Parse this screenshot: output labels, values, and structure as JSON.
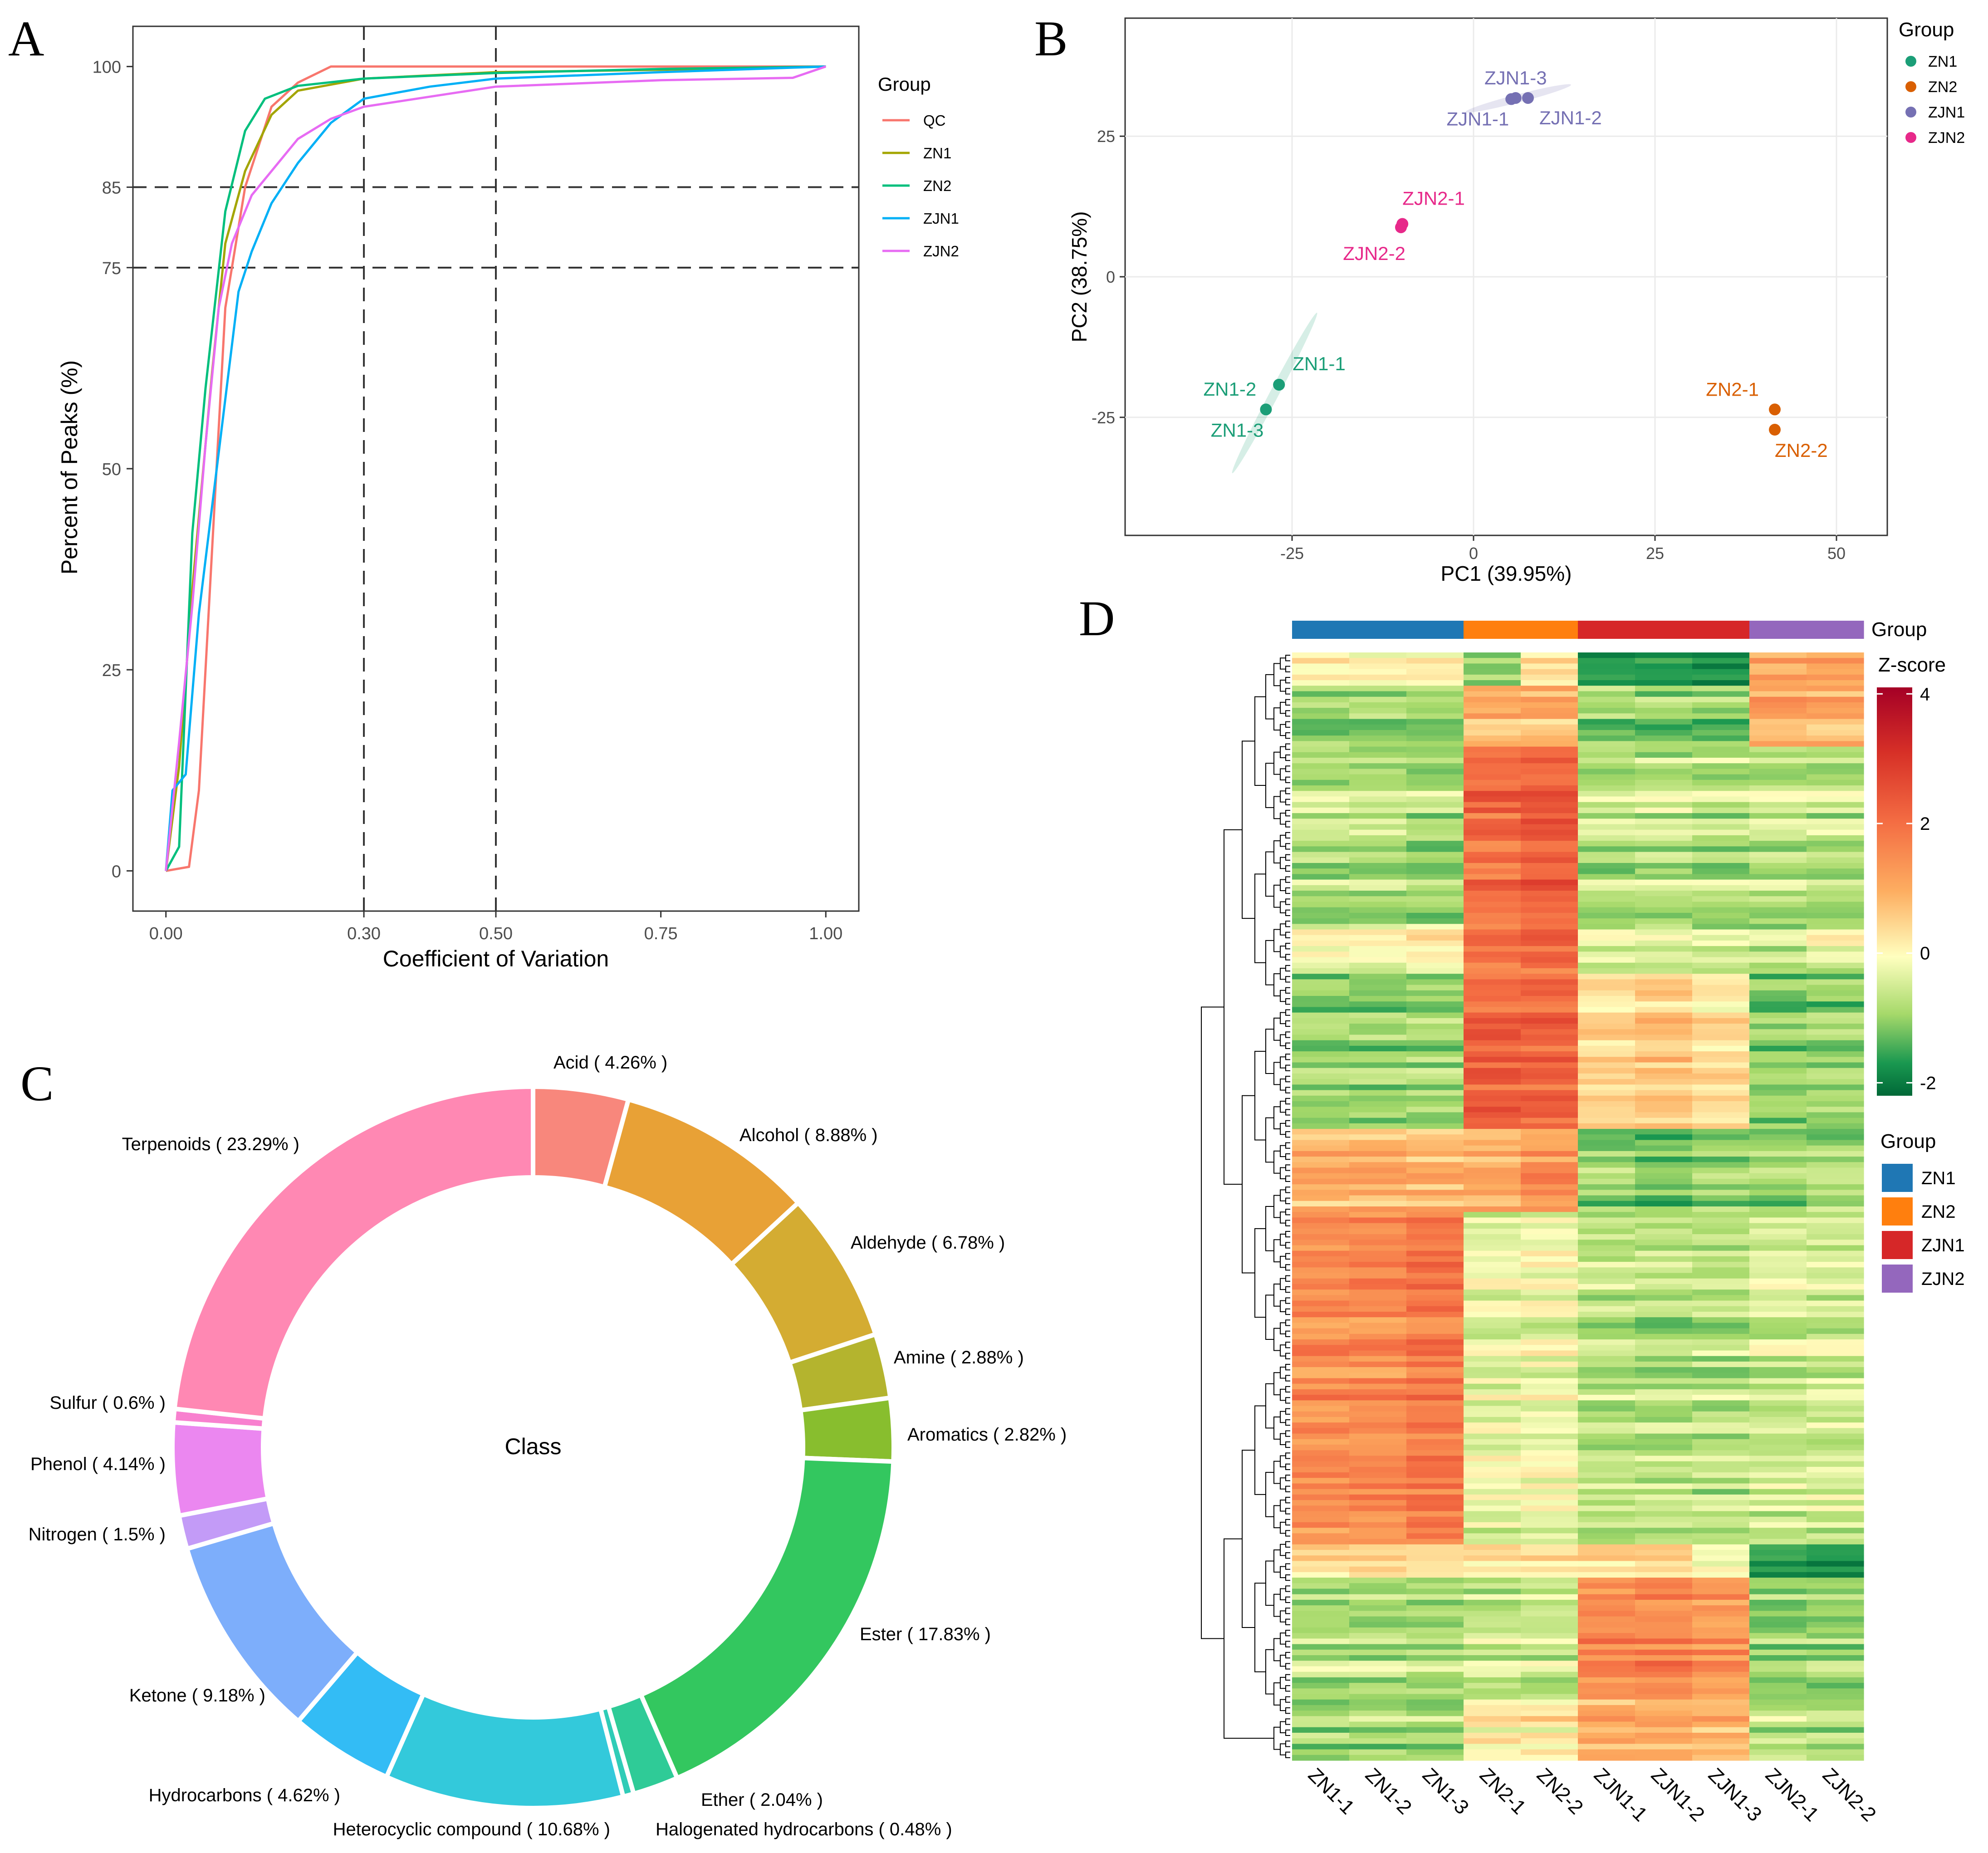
{
  "panels": {
    "a": "A",
    "b": "B",
    "c": "C",
    "d": "D"
  },
  "palette": {
    "QC": "#F8766D",
    "ZN1": "#A3A500",
    "ZN2": "#00BF7D",
    "ZJN1": "#00B0F6",
    "ZJN2": "#E76BF3",
    "pcaZN1": "#1B9E77",
    "pcaZN2": "#D95F02",
    "pcaZJN1": "#7570B3",
    "pcaZJN2": "#E7298A",
    "hmZN1": "#1F77B4",
    "hmZN2": "#FF7F0E",
    "hmZJN1": "#D62728",
    "hmZJN2": "#9467BD"
  },
  "chart_data": [
    {
      "id": "cv_cumulative",
      "type": "line",
      "xlabel": "Coefficient of Variation",
      "ylabel": "Percent of Peaks (%)",
      "xlim": [
        -0.05,
        1.05
      ],
      "ylim": [
        -5,
        105
      ],
      "xticks": [
        "0.00",
        "0.30",
        "0.50",
        "0.75",
        "1.00"
      ],
      "xtick_values": [
        0,
        0.3,
        0.5,
        0.75,
        1.0
      ],
      "yticks": [
        "0",
        "25",
        "50",
        "75",
        "85",
        "100"
      ],
      "ytick_values": [
        0,
        25,
        50,
        75,
        85,
        100
      ],
      "hlines": [
        75,
        85
      ],
      "vlines": [
        0.3,
        0.5
      ],
      "legend_title": "Group",
      "series": [
        {
          "name": "QC",
          "x": [
            0,
            0.035,
            0.05,
            0.07,
            0.09,
            0.12,
            0.16,
            0.2,
            0.25,
            0.3,
            0.5,
            0.75,
            1.0
          ],
          "y": [
            0,
            0.5,
            10,
            40,
            70,
            85,
            95,
            98,
            100,
            100,
            100,
            100,
            100
          ]
        },
        {
          "name": "ZN1",
          "x": [
            0,
            0.02,
            0.04,
            0.07,
            0.09,
            0.12,
            0.16,
            0.2,
            0.3,
            0.5,
            0.75,
            1.0
          ],
          "y": [
            0,
            13,
            35,
            62,
            78,
            87,
            94,
            97,
            98.5,
            99.3,
            99.6,
            100
          ]
        },
        {
          "name": "ZN2",
          "x": [
            0,
            0.02,
            0.04,
            0.06,
            0.09,
            0.12,
            0.15,
            0.2,
            0.3,
            0.5,
            0.75,
            1.0
          ],
          "y": [
            0,
            3,
            42,
            60,
            82,
            92,
            96,
            97.6,
            98.5,
            99.2,
            99.7,
            100
          ]
        },
        {
          "name": "ZJN1",
          "x": [
            0,
            0.01,
            0.03,
            0.05,
            0.08,
            0.11,
            0.13,
            0.16,
            0.2,
            0.25,
            0.3,
            0.4,
            0.5,
            0.75,
            1.0
          ],
          "y": [
            0,
            10,
            12,
            32,
            52,
            72,
            77,
            83,
            88,
            93,
            96,
            97.5,
            98.5,
            99.3,
            100
          ]
        },
        {
          "name": "ZJN2",
          "x": [
            0,
            0.02,
            0.04,
            0.06,
            0.08,
            0.1,
            0.13,
            0.17,
            0.2,
            0.25,
            0.3,
            0.5,
            0.75,
            0.95,
            1.0
          ],
          "y": [
            0,
            16,
            33,
            53,
            70,
            78,
            84,
            88,
            91,
            93.5,
            95,
            97.5,
            98.3,
            98.6,
            100
          ]
        }
      ]
    },
    {
      "id": "pca",
      "type": "scatter",
      "xlabel": "PC1 (39.95%)",
      "ylabel": "PC2 (38.75%)",
      "xlim": [
        -48,
        57
      ],
      "ylim": [
        -46,
        46
      ],
      "xticks": [
        "-25",
        "0",
        "25",
        "50"
      ],
      "xtick_values": [
        -25,
        0,
        25,
        50
      ],
      "yticks": [
        "-25",
        "0",
        "25"
      ],
      "ytick_values": [
        -25,
        0,
        25
      ],
      "legend_title": "Group",
      "legend": [
        "ZN1",
        "ZN2",
        "ZJN1",
        "ZJN2"
      ],
      "points": [
        {
          "label": "ZN1-1",
          "group": "ZN1",
          "x": -26.8,
          "y": -19.2
        },
        {
          "label": "ZN1-2",
          "group": "ZN1",
          "x": -26.8,
          "y": -19.2
        },
        {
          "label": "ZN1-3",
          "group": "ZN1",
          "x": -28.6,
          "y": -23.6
        },
        {
          "label": "ZN2-1",
          "group": "ZN2",
          "x": 41.5,
          "y": -23.6
        },
        {
          "label": "ZN2-2",
          "group": "ZN2",
          "x": 41.5,
          "y": -27.2
        },
        {
          "label": "ZJN1-1",
          "group": "ZJN1",
          "x": 5.2,
          "y": 31.6
        },
        {
          "label": "ZJN1-2",
          "group": "ZJN1",
          "x": 7.5,
          "y": 31.8
        },
        {
          "label": "ZJN1-3",
          "group": "ZJN1",
          "x": 5.8,
          "y": 31.8
        },
        {
          "label": "ZJN2-1",
          "group": "ZJN2",
          "x": -9.8,
          "y": 9.4
        },
        {
          "label": "ZJN2-2",
          "group": "ZJN2",
          "x": -10.0,
          "y": 8.8
        }
      ]
    },
    {
      "id": "class_donut",
      "type": "pie",
      "center_label": "Class",
      "slices": [
        {
          "name": "Acid",
          "value": 4.26,
          "label": "Acid ( 4.26% )",
          "color": "#F8877C"
        },
        {
          "name": "Alcohol",
          "value": 8.88,
          "label": "Alcohol ( 8.88% )",
          "color": "#E8A136"
        },
        {
          "name": "Aldehyde",
          "value": 6.78,
          "label": "Aldehyde ( 6.78% )",
          "color": "#D4AC32"
        },
        {
          "name": "Amine",
          "value": 2.88,
          "label": "Amine ( 2.88% )",
          "color": "#B4B42E"
        },
        {
          "name": "Aromatics",
          "value": 2.82,
          "label": "Aromatics ( 2.82% )",
          "color": "#88BE2E"
        },
        {
          "name": "Ester",
          "value": 17.83,
          "label": "Ester ( 17.83% )",
          "color": "#33C75F"
        },
        {
          "name": "Ether",
          "value": 2.04,
          "label": "Ether ( 2.04% )",
          "color": "#2FCB97"
        },
        {
          "name": "Halogenated hydrocarbons",
          "value": 0.48,
          "label": "Halogenated hydrocarbons ( 0.48% )",
          "color": "#2FCCB7"
        },
        {
          "name": "Heterocyclic compound",
          "value": 10.68,
          "label": "Heterocyclic compound ( 10.68% )",
          "color": "#33C9DB"
        },
        {
          "name": "Hydrocarbons",
          "value": 4.62,
          "label": "Hydrocarbons ( 4.62% )",
          "color": "#33BCF5"
        },
        {
          "name": "Ketone",
          "value": 9.18,
          "label": "Ketone ( 9.18% )",
          "color": "#7DAEFB"
        },
        {
          "name": "Nitrogen",
          "value": 1.5,
          "label": "Nitrogen ( 1.5% )",
          "color": "#C39BF7"
        },
        {
          "name": "Phenol",
          "value": 4.14,
          "label": "Phenol ( 4.14% )",
          "color": "#EB87F0"
        },
        {
          "name": "Sulfur",
          "value": 0.6,
          "label": "Sulfur ( 0.6% )",
          "color": "#F880CF"
        },
        {
          "name": "Terpenoids",
          "value": 23.29,
          "label": "Terpenoids ( 23.29% )",
          "color": "#FF88B3"
        }
      ]
    },
    {
      "id": "heatmap",
      "type": "heatmap",
      "columns": [
        "ZN1-1",
        "ZN1-2",
        "ZN1-3",
        "ZN2-1",
        "ZN2-2",
        "ZJN1-1",
        "ZJN1-2",
        "ZJN1-3",
        "ZJN2-1",
        "ZJN2-2"
      ],
      "column_groups": [
        "ZN1",
        "ZN1",
        "ZN1",
        "ZN2",
        "ZN2",
        "ZJN1",
        "ZJN1",
        "ZJN1",
        "ZJN2",
        "ZJN2"
      ],
      "annotation_label": "Group",
      "colorbar_title": "Z-score",
      "colorbar_ticks": [
        "4",
        "2",
        "0",
        "-2"
      ],
      "colorbar_tick_values": [
        4,
        2,
        0,
        -2
      ],
      "zlim": [
        -2.2,
        4.1
      ],
      "legend_title": "Group",
      "legend": [
        "ZN1",
        "ZN2",
        "ZJN1",
        "ZJN2"
      ],
      "row_blocks": [
        {
          "rows": 12,
          "z": [
            0.3,
            0.3,
            0.4,
            -0.8,
            0.5,
            -1.4,
            -1.5,
            -1.6,
            1.2,
            1.3
          ]
        },
        {
          "rows": 22,
          "z": [
            -1.0,
            -1.0,
            -0.9,
            0.8,
            0.9,
            -0.9,
            -1.0,
            -1.0,
            1.0,
            0.9
          ]
        },
        {
          "rows": 64,
          "z": [
            -0.6,
            -0.6,
            -0.7,
            2.0,
            2.3,
            -0.6,
            -0.5,
            -0.6,
            -0.5,
            -0.5
          ]
        },
        {
          "rows": 18,
          "z": [
            -0.2,
            -0.1,
            0.1,
            1.8,
            2.0,
            -0.4,
            -0.4,
            -0.5,
            -0.6,
            -0.3
          ]
        },
        {
          "rows": 56,
          "z": [
            -0.9,
            -0.9,
            -0.9,
            2.1,
            2.1,
            0.4,
            0.6,
            0.3,
            -1.0,
            -0.9
          ]
        },
        {
          "rows": 30,
          "z": [
            0.9,
            0.9,
            0.8,
            0.9,
            1.3,
            -1.0,
            -1.1,
            -1.0,
            -0.9,
            -0.8
          ]
        },
        {
          "rows": 120,
          "z": [
            1.5,
            1.5,
            1.8,
            -0.2,
            -0.1,
            -0.6,
            -0.6,
            -0.6,
            -0.4,
            -0.4
          ]
        },
        {
          "rows": 12,
          "z": [
            0.3,
            0.3,
            0.2,
            0.2,
            0.2,
            0.2,
            0.4,
            -0.2,
            -1.8,
            -1.9
          ]
        },
        {
          "rows": 44,
          "z": [
            -0.6,
            -0.6,
            -0.6,
            -0.4,
            -0.4,
            1.6,
            1.7,
            1.5,
            -0.8,
            -0.8
          ]
        },
        {
          "rows": 22,
          "z": [
            -0.8,
            -0.8,
            -0.8,
            0.2,
            0.2,
            1.0,
            1.0,
            0.9,
            -0.6,
            -0.6
          ]
        }
      ]
    }
  ]
}
